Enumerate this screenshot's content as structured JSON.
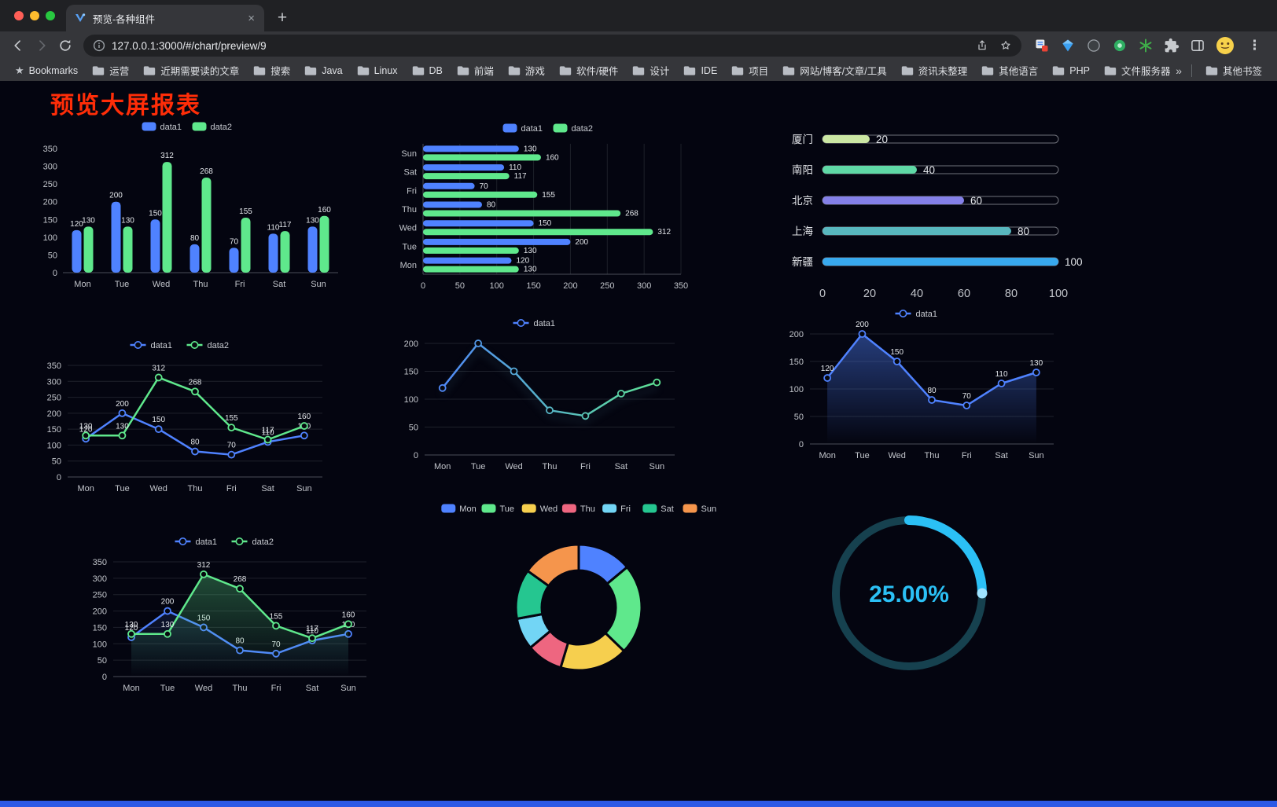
{
  "browser": {
    "tab_title": "预览-各种组件",
    "url": "127.0.0.1:3000/#/chart/preview/9",
    "icons": {
      "tab_close": "×",
      "new_tab": "+",
      "menu": "⋮",
      "bookmarks_star": "★",
      "overflow_chevron": "»"
    },
    "bookmarks_label": "Bookmarks",
    "bookmarks": [
      "运营",
      "近期需要读的文章",
      "搜索",
      "Java",
      "Linux",
      "DB",
      "前端",
      "游戏",
      "软件/硬件",
      "设计",
      "IDE",
      "项目",
      "网站/博客/文章/工具",
      "资讯未整理",
      "其他语言",
      "PHP",
      "文件服务器"
    ],
    "other_bookmarks": "其他书签"
  },
  "page": {
    "title": "预览大屏报表"
  },
  "colors": {
    "data1": "#4f82ff",
    "data2": "#5fe88c",
    "title_red": "#ff2d08",
    "gauge_cyan": "#2bc0f5",
    "bottom_bar": "#2c59e6"
  },
  "chart_data": [
    {
      "id": "c1",
      "type": "bar",
      "categories": [
        "Mon",
        "Tue",
        "Wed",
        "Thu",
        "Fri",
        "Sat",
        "Sun"
      ],
      "series": [
        {
          "name": "data1",
          "color": "#4f82ff",
          "values": [
            120,
            200,
            150,
            80,
            70,
            110,
            130
          ]
        },
        {
          "name": "data2",
          "color": "#5fe88c",
          "values": [
            130,
            130,
            312,
            268,
            155,
            117,
            160
          ]
        }
      ],
      "ylim": [
        0,
        350
      ],
      "yticks": [
        0,
        50,
        100,
        150,
        200,
        250,
        300,
        350
      ],
      "value_labels": true,
      "legend_position": "top"
    },
    {
      "id": "c2",
      "type": "hbar",
      "categories": [
        "Mon",
        "Tue",
        "Wed",
        "Thu",
        "Fri",
        "Sat",
        "Sun"
      ],
      "series": [
        {
          "name": "data1",
          "color": "#4f82ff",
          "values": [
            120,
            200,
            150,
            80,
            70,
            110,
            130
          ]
        },
        {
          "name": "data2",
          "color": "#5fe88c",
          "values": [
            130,
            130,
            312,
            268,
            155,
            117,
            160
          ]
        }
      ],
      "xlim": [
        0,
        350
      ],
      "xticks": [
        0,
        50,
        100,
        150,
        200,
        250,
        300,
        350
      ],
      "value_labels": true,
      "legend_position": "top"
    },
    {
      "id": "c3",
      "type": "progress",
      "items": [
        {
          "label": "厦门",
          "value": 20,
          "color": "#cbe7a3"
        },
        {
          "label": "南阳",
          "value": 40,
          "color": "#5fd9a6"
        },
        {
          "label": "北京",
          "value": 60,
          "color": "#8480e8"
        },
        {
          "label": "上海",
          "value": 80,
          "color": "#58b7be"
        },
        {
          "label": "新疆",
          "value": 100,
          "color": "#38a9ee"
        }
      ],
      "xlim": [
        0,
        100
      ],
      "xticks": [
        0,
        20,
        40,
        60,
        80,
        100
      ]
    },
    {
      "id": "c4",
      "type": "line",
      "categories": [
        "Mon",
        "Tue",
        "Wed",
        "Thu",
        "Fri",
        "Sat",
        "Sun"
      ],
      "series": [
        {
          "name": "data1",
          "color": "#4f82ff",
          "values": [
            120,
            200,
            150,
            80,
            70,
            110,
            130
          ]
        },
        {
          "name": "data2",
          "color": "#5fe88c",
          "values": [
            130,
            130,
            312,
            268,
            155,
            117,
            160
          ]
        }
      ],
      "ylim": [
        0,
        350
      ],
      "yticks": [
        0,
        50,
        100,
        150,
        200,
        250,
        300,
        350
      ],
      "value_labels": true,
      "legend_position": "top"
    },
    {
      "id": "c5",
      "type": "line",
      "categories": [
        "Mon",
        "Tue",
        "Wed",
        "Thu",
        "Fri",
        "Sat",
        "Sun"
      ],
      "series": [
        {
          "name": "data1",
          "color": "#4f82ff",
          "gradient": [
            "#4f82ff",
            "#5fe88c"
          ],
          "values": [
            120,
            200,
            150,
            80,
            70,
            110,
            130
          ]
        }
      ],
      "ylim": [
        0,
        200
      ],
      "yticks": [
        0,
        50,
        100,
        150,
        200
      ],
      "value_labels": false,
      "legend_position": "top"
    },
    {
      "id": "c6",
      "type": "line",
      "categories": [
        "Mon",
        "Tue",
        "Wed",
        "Thu",
        "Fri",
        "Sat",
        "Sun"
      ],
      "series": [
        {
          "name": "data1",
          "color": "#4f82ff",
          "values": [
            120,
            200,
            150,
            80,
            70,
            110,
            130
          ],
          "area": true,
          "area_opacity": 0.45
        }
      ],
      "ylim": [
        0,
        200
      ],
      "yticks": [
        0,
        50,
        100,
        150,
        200
      ],
      "value_labels": true,
      "legend_position": "top"
    },
    {
      "id": "c7",
      "type": "line",
      "categories": [
        "Mon",
        "Tue",
        "Wed",
        "Thu",
        "Fri",
        "Sat",
        "Sun"
      ],
      "series": [
        {
          "name": "data1",
          "color": "#4f82ff",
          "values": [
            120,
            200,
            150,
            80,
            70,
            110,
            130
          ],
          "area": true,
          "area_opacity": 0.22
        },
        {
          "name": "data2",
          "color": "#5fe88c",
          "values": [
            130,
            130,
            312,
            268,
            155,
            117,
            160
          ],
          "area": true,
          "area_opacity": 0.35
        }
      ],
      "ylim": [
        0,
        350
      ],
      "yticks": [
        0,
        50,
        100,
        150,
        200,
        250,
        300,
        350
      ],
      "value_labels": true,
      "legend_position": "top"
    },
    {
      "id": "c8",
      "type": "pie",
      "categories": [
        "Mon",
        "Tue",
        "Wed",
        "Thu",
        "Fri",
        "Sat",
        "Sun"
      ],
      "values": [
        120,
        200,
        150,
        80,
        70,
        110,
        130
      ],
      "colors": [
        "#4f82ff",
        "#5fe88c",
        "#f6cf4e",
        "#ee6680",
        "#72d5f5",
        "#25c690",
        "#f5954c"
      ],
      "legend_position": "top",
      "inner_radius": 47,
      "outer_radius": 80
    },
    {
      "id": "c9",
      "type": "gauge",
      "value": 25,
      "label": "25.00%",
      "color": "#2bc0f5",
      "track_color": "#16414f",
      "cap_color": "#9fe3ff"
    }
  ]
}
